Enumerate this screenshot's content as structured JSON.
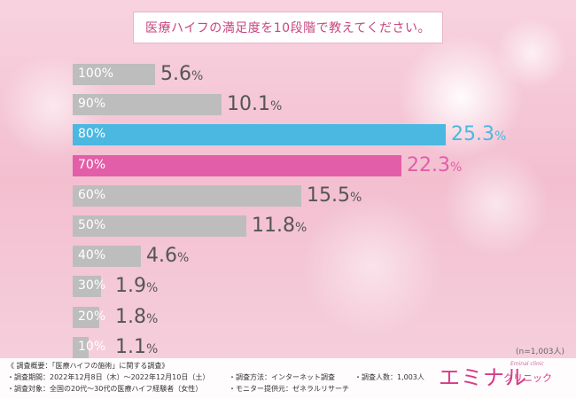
{
  "title": "医療ハイフの満足度を10段階で教えてください。",
  "chart_data": {
    "type": "bar",
    "orientation": "horizontal",
    "title": "医療ハイフの満足度を10段階で教えてください。",
    "categories": [
      "100%",
      "90%",
      "80%",
      "70%",
      "60%",
      "50%",
      "40%",
      "30%",
      "20%",
      "10%"
    ],
    "values": [
      5.6,
      10.1,
      25.3,
      22.3,
      15.5,
      11.8,
      4.6,
      1.9,
      1.8,
      1.1
    ],
    "value_labels": [
      "5.6",
      "10.1",
      "25.3",
      "22.3",
      "15.5",
      "11.8",
      "4.6",
      "1.9",
      "1.8",
      "1.1"
    ],
    "unit": "%",
    "xlim": [
      0,
      25.3
    ],
    "highlight": {
      "80%": "#4ab8e0",
      "70%": "#e35ea8"
    },
    "default_color": "#bdbdbd"
  },
  "sample_note": "(n=1,003人)",
  "footer": {
    "line1": "《 調査概要：「医療ハイフの施術」に関する調査》",
    "period": "・調査期間：2022年12月8日（木）～2022年12月10日（土）",
    "target": "・調査対象：全国の20代～30代の医療ハイフ経験者（女性）",
    "method": "・調査方法：インターネット調査",
    "provider": "・モニター提供元：ゼネラルリサーチ",
    "count": "・調査人数：1,003人"
  },
  "logo": {
    "main": "エミナル",
    "sub": "クリニック",
    "tiny": "Eminal clinic"
  }
}
